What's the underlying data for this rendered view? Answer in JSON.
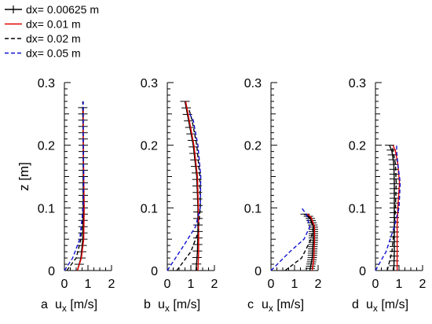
{
  "chart_data": {
    "type": "line",
    "legend": {
      "placement": "top-left",
      "entries": [
        {
          "label": "dx= 0.00625 m",
          "color": "#000000",
          "style": "solid-cross"
        },
        {
          "label": "dx= 0.01 m",
          "color": "#e00000",
          "style": "solid"
        },
        {
          "label": "dx= 0.02 m",
          "color": "#000000",
          "style": "dashed"
        },
        {
          "label": "dx= 0.05 m",
          "color": "#1010d0",
          "style": "dashed"
        }
      ]
    },
    "ylabel": "z [m]",
    "xlabel_base": "u",
    "xlabel_sub": "x",
    "xlabel_unit": " [m/s]",
    "xlim": [
      0,
      2
    ],
    "ylim": [
      0,
      0.3
    ],
    "x_ticks": [
      "0",
      "1",
      "2"
    ],
    "y_ticks": [
      "0",
      "0.1",
      "0.2",
      "0.3"
    ],
    "panels": [
      {
        "label": "a",
        "series": [
          {
            "values": [
              [
                0.55,
                0.0
              ],
              [
                0.7,
                0.02
              ],
              [
                0.78,
                0.05
              ],
              [
                0.8,
                0.1
              ],
              [
                0.8,
                0.15
              ],
              [
                0.8,
                0.2
              ],
              [
                0.78,
                0.26
              ]
            ]
          },
          {
            "values": [
              [
                0.55,
                0.0
              ],
              [
                0.72,
                0.02
              ],
              [
                0.82,
                0.05
              ],
              [
                0.84,
                0.1
              ],
              [
                0.82,
                0.15
              ],
              [
                0.8,
                0.2
              ],
              [
                0.8,
                0.26
              ]
            ]
          },
          {
            "values": [
              [
                0.1,
                0.0
              ],
              [
                0.5,
                0.02
              ],
              [
                0.7,
                0.05
              ],
              [
                0.78,
                0.1
              ],
              [
                0.8,
                0.15
              ],
              [
                0.8,
                0.2
              ],
              [
                0.78,
                0.27
              ]
            ]
          },
          {
            "values": [
              [
                0.0,
                0.0
              ],
              [
                0.35,
                0.02
              ],
              [
                0.65,
                0.05
              ],
              [
                0.8,
                0.1
              ],
              [
                0.82,
                0.15
              ],
              [
                0.8,
                0.2
              ],
              [
                0.8,
                0.27
              ]
            ]
          }
        ]
      },
      {
        "label": "b",
        "series": [
          {
            "values": [
              [
                1.22,
                0.0
              ],
              [
                1.28,
                0.03
              ],
              [
                1.3,
                0.06
              ],
              [
                1.3,
                0.1
              ],
              [
                1.25,
                0.15
              ],
              [
                1.1,
                0.2
              ],
              [
                0.9,
                0.24
              ],
              [
                0.75,
                0.27
              ]
            ]
          },
          {
            "values": [
              [
                1.3,
                0.0
              ],
              [
                1.33,
                0.03
              ],
              [
                1.33,
                0.06
              ],
              [
                1.32,
                0.1
              ],
              [
                1.28,
                0.15
              ],
              [
                1.13,
                0.2
              ],
              [
                0.93,
                0.24
              ],
              [
                0.78,
                0.27
              ]
            ]
          },
          {
            "values": [
              [
                0.4,
                0.0
              ],
              [
                1.0,
                0.03
              ],
              [
                1.3,
                0.06
              ],
              [
                1.4,
                0.1
              ],
              [
                1.38,
                0.15
              ],
              [
                1.25,
                0.2
              ],
              [
                1.05,
                0.24
              ],
              [
                0.9,
                0.26
              ]
            ]
          },
          {
            "values": [
              [
                0.0,
                0.0
              ],
              [
                0.7,
                0.04
              ],
              [
                1.2,
                0.07
              ],
              [
                1.4,
                0.1
              ],
              [
                1.42,
                0.15
              ],
              [
                1.3,
                0.2
              ],
              [
                1.1,
                0.24
              ],
              [
                0.95,
                0.25
              ]
            ]
          }
        ]
      },
      {
        "label": "c",
        "series": [
          {
            "values": [
              [
                1.65,
                0.0
              ],
              [
                1.75,
                0.02
              ],
              [
                1.8,
                0.05
              ],
              [
                1.8,
                0.07
              ],
              [
                1.65,
                0.085
              ],
              [
                1.45,
                0.09
              ]
            ]
          },
          {
            "values": [
              [
                1.75,
                0.0
              ],
              [
                1.82,
                0.02
              ],
              [
                1.85,
                0.05
              ],
              [
                1.85,
                0.07
              ],
              [
                1.7,
                0.085
              ],
              [
                1.55,
                0.09
              ]
            ]
          },
          {
            "values": [
              [
                0.6,
                0.0
              ],
              [
                1.3,
                0.02
              ],
              [
                1.7,
                0.05
              ],
              [
                1.8,
                0.07
              ],
              [
                1.6,
                0.085
              ],
              [
                1.4,
                0.09
              ]
            ]
          },
          {
            "values": [
              [
                0.0,
                0.0
              ],
              [
                0.8,
                0.03
              ],
              [
                1.4,
                0.05
              ],
              [
                1.65,
                0.07
              ],
              [
                1.5,
                0.09
              ],
              [
                1.3,
                0.1
              ]
            ]
          }
        ]
      },
      {
        "label": "d",
        "series": [
          {
            "values": [
              [
                0.78,
                0.0
              ],
              [
                0.8,
                0.03
              ],
              [
                0.8,
                0.07
              ],
              [
                0.8,
                0.1
              ],
              [
                0.8,
                0.14
              ],
              [
                0.78,
                0.17
              ],
              [
                0.7,
                0.19
              ],
              [
                0.6,
                0.2
              ]
            ]
          },
          {
            "values": [
              [
                0.92,
                0.0
              ],
              [
                0.92,
                0.03
              ],
              [
                0.92,
                0.07
              ],
              [
                0.95,
                0.1
              ],
              [
                1.02,
                0.14
              ],
              [
                0.95,
                0.17
              ],
              [
                0.85,
                0.19
              ],
              [
                0.75,
                0.2
              ]
            ]
          },
          {
            "values": [
              [
                0.5,
                0.0
              ],
              [
                0.7,
                0.03
              ],
              [
                0.8,
                0.07
              ],
              [
                0.85,
                0.1
              ],
              [
                0.88,
                0.14
              ],
              [
                0.85,
                0.17
              ],
              [
                0.75,
                0.19
              ],
              [
                0.7,
                0.2
              ]
            ]
          },
          {
            "values": [
              [
                0.0,
                0.0
              ],
              [
                0.45,
                0.03
              ],
              [
                0.8,
                0.07
              ],
              [
                1.0,
                0.1
              ],
              [
                1.05,
                0.14
              ],
              [
                0.95,
                0.17
              ],
              [
                0.9,
                0.19
              ],
              [
                0.9,
                0.2
              ]
            ]
          }
        ]
      }
    ]
  }
}
